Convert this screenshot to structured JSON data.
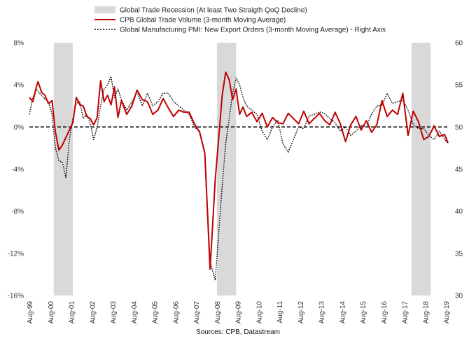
{
  "chart_data": {
    "type": "line",
    "legend": {
      "position": "top-center",
      "items": [
        {
          "label": "Global Trade Recession (At least Two Straigth QoQ Decline)",
          "kind": "shade",
          "color": "#d9d9d9"
        },
        {
          "label": "CPB Global Trade Volume (3-month Moving Average)",
          "kind": "solid",
          "color": "#c00000"
        },
        {
          "label": "Global Manufacturing PMI: New Export Orders (3-month Moving Average) - Right Axis",
          "kind": "dotted",
          "color": "#000000"
        }
      ]
    },
    "source": "Sources: CPB, Datastream",
    "x_ticks": [
      "Aug-99",
      "Aug-00",
      "Aug-01",
      "Aug-02",
      "Aug-03",
      "Aug-04",
      "Aug-05",
      "Aug-06",
      "Aug-07",
      "Aug-08",
      "Aug-09",
      "Aug-10",
      "Aug-11",
      "Aug-12",
      "Aug-13",
      "Aug-14",
      "Aug-15",
      "Aug-16",
      "Aug-17",
      "Aug-18",
      "Aug-19"
    ],
    "y_left": {
      "ticks": [
        "8%",
        "4%",
        "0%",
        "-4%",
        "-8%",
        "-12%",
        "-16%"
      ],
      "range": [
        -16,
        8
      ]
    },
    "y_right": {
      "ticks": [
        "60",
        "55",
        "50",
        "45",
        "40",
        "35",
        "30"
      ],
      "range": [
        30,
        60
      ]
    },
    "x_range": [
      1999.583,
      2019.667
    ],
    "recession_periods": [
      [
        2000.75,
        2001.667
      ],
      [
        2008.583,
        2009.5
      ],
      [
        2017.917,
        2018.833
      ]
    ],
    "zero_line": {
      "style": "dashed",
      "value": 0
    },
    "series": [
      {
        "name": "CPB Global Trade Volume (3-month Moving Average)",
        "axis": "left",
        "x": [
          1999.583,
          1999.75,
          1999.917,
          2000.0,
          2000.167,
          2000.333,
          2000.5,
          2000.667,
          2000.833,
          2001.0,
          2001.167,
          2001.333,
          2001.5,
          2001.667,
          2001.833,
          2002.0,
          2002.167,
          2002.333,
          2002.5,
          2002.667,
          2002.833,
          2003.0,
          2003.167,
          2003.333,
          2003.5,
          2003.667,
          2003.833,
          2004.0,
          2004.25,
          2004.5,
          2004.75,
          2005.0,
          2005.25,
          2005.5,
          2005.75,
          2006.0,
          2006.25,
          2006.5,
          2006.75,
          2007.0,
          2007.25,
          2007.5,
          2007.75,
          2008.0,
          2008.25,
          2008.5,
          2008.667,
          2008.833,
          2009.0,
          2009.167,
          2009.333,
          2009.5,
          2009.667,
          2009.833,
          2010.0,
          2010.25,
          2010.5,
          2010.75,
          2011.0,
          2011.25,
          2011.5,
          2011.75,
          2012.0,
          2012.25,
          2012.5,
          2012.75,
          2013.0,
          2013.25,
          2013.5,
          2013.75,
          2014.0,
          2014.25,
          2014.5,
          2014.75,
          2015.0,
          2015.25,
          2015.5,
          2015.75,
          2016.0,
          2016.25,
          2016.5,
          2016.75,
          2017.0,
          2017.25,
          2017.5,
          2017.75,
          2018.0,
          2018.25,
          2018.5,
          2018.75,
          2019.0,
          2019.25,
          2019.5,
          2019.667
        ],
        "y": [
          2.8,
          2.4,
          3.8,
          4.3,
          3.3,
          3.0,
          2.2,
          2.5,
          -0.5,
          -2.2,
          -1.7,
          -1.0,
          -0.3,
          0.4,
          2.8,
          2.1,
          2.0,
          1.0,
          0.8,
          0.2,
          0.9,
          4.4,
          2.4,
          3.0,
          2.1,
          3.8,
          0.9,
          2.5,
          1.2,
          2.0,
          3.5,
          2.6,
          2.4,
          1.2,
          1.6,
          2.7,
          1.8,
          1.0,
          1.6,
          1.4,
          1.4,
          0.3,
          -0.5,
          -2.5,
          -13.5,
          -5.0,
          -1.0,
          3.0,
          5.2,
          4.5,
          2.6,
          3.6,
          1.2,
          1.9,
          1.0,
          1.4,
          0.5,
          1.3,
          0.0,
          0.9,
          0.4,
          0.3,
          1.3,
          0.8,
          0.3,
          1.5,
          0.3,
          0.8,
          1.3,
          0.6,
          0.2,
          1.4,
          0.3,
          -1.4,
          0.2,
          1.0,
          -0.3,
          0.6,
          -0.5,
          0.2,
          2.5,
          1.0,
          1.6,
          1.2,
          3.2,
          -0.8,
          1.5,
          0.5,
          -1.2,
          -0.9,
          0.1,
          -0.9,
          -0.7,
          -1.5
        ]
      },
      {
        "name": "Global Manufacturing PMI: New Export Orders (3-month Moving Average) - Right Axis",
        "axis": "right",
        "x": [
          1999.583,
          1999.75,
          1999.917,
          2000.083,
          2000.25,
          2000.5,
          2000.667,
          2000.833,
          2001.0,
          2001.167,
          2001.333,
          2001.5,
          2001.667,
          2001.833,
          2002.0,
          2002.167,
          2002.333,
          2002.5,
          2002.667,
          2002.833,
          2003.0,
          2003.167,
          2003.333,
          2003.5,
          2003.667,
          2003.833,
          2004.0,
          2004.25,
          2004.5,
          2004.75,
          2005.0,
          2005.25,
          2005.5,
          2005.75,
          2006.0,
          2006.25,
          2006.5,
          2006.75,
          2007.0,
          2007.25,
          2007.5,
          2007.75,
          2008.0,
          2008.25,
          2008.5,
          2008.667,
          2008.833,
          2009.0,
          2009.167,
          2009.333,
          2009.5,
          2009.667,
          2009.833,
          2010.0,
          2010.25,
          2010.5,
          2010.75,
          2011.0,
          2011.25,
          2011.5,
          2011.75,
          2012.0,
          2012.25,
          2012.5,
          2012.75,
          2013.0,
          2013.25,
          2013.5,
          2013.75,
          2014.0,
          2014.25,
          2014.5,
          2014.75,
          2015.0,
          2015.25,
          2015.5,
          2015.75,
          2016.0,
          2016.25,
          2016.5,
          2016.75,
          2017.0,
          2017.25,
          2017.5,
          2017.75,
          2018.0,
          2018.25,
          2018.5,
          2018.75,
          2019.0,
          2019.25,
          2019.5,
          2019.667
        ],
        "y": [
          51.5,
          53.5,
          54.5,
          54.0,
          53.5,
          53.0,
          51.5,
          47.5,
          46.0,
          45.8,
          44.0,
          48.5,
          51.0,
          52.8,
          53.0,
          51.0,
          51.5,
          50.5,
          48.5,
          50.0,
          52.5,
          54.5,
          55.0,
          56.0,
          53.5,
          54.5,
          53.2,
          52.0,
          53.0,
          54.2,
          52.5,
          54.0,
          52.5,
          53.0,
          54.0,
          54.0,
          53.0,
          52.5,
          52.0,
          51.5,
          50.0,
          49.5,
          47.0,
          34.0,
          31.8,
          37.5,
          43.0,
          48.0,
          51.0,
          54.0,
          55.8,
          55.0,
          53.5,
          52.5,
          52.0,
          51.5,
          49.5,
          48.5,
          50.0,
          50.8,
          48.0,
          47.0,
          48.5,
          50.0,
          49.8,
          51.3,
          51.5,
          51.8,
          51.6,
          51.0,
          50.5,
          49.5,
          50.0,
          49.0,
          49.5,
          50.2,
          50.0,
          51.5,
          52.5,
          52.6,
          54.0,
          52.8,
          53.0,
          53.2,
          52.0,
          50.3,
          49.8,
          49.8,
          49.0,
          48.5,
          49.5,
          48.6,
          48.0
        ]
      }
    ]
  }
}
